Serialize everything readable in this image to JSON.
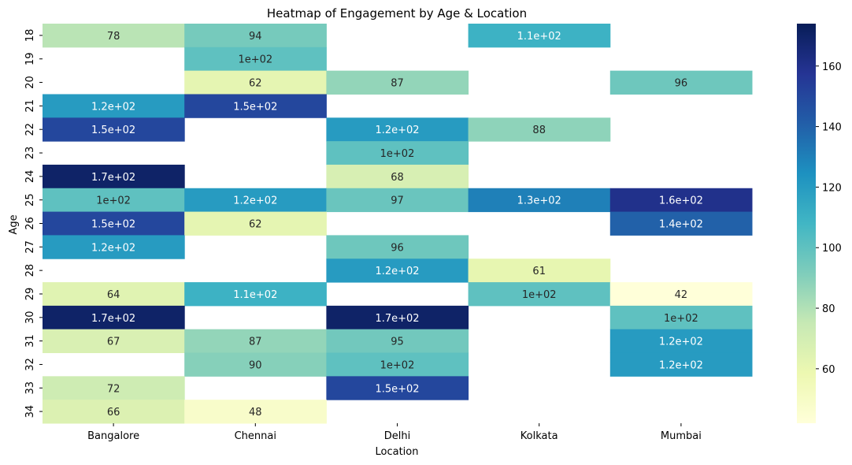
{
  "chart_data": {
    "type": "heatmap",
    "title": "Heatmap of Engagement by Age & Location",
    "xlabel": "Location",
    "ylabel": "Age",
    "x_categories": [
      "Bangalore",
      "Chennai",
      "Delhi",
      "Kolkata",
      "Mumbai"
    ],
    "y_categories": [
      "18",
      "19",
      "20",
      "21",
      "22",
      "23",
      "24",
      "25",
      "26",
      "27",
      "28",
      "29",
      "30",
      "31",
      "32",
      "33",
      "34"
    ],
    "values": [
      [
        78,
        94,
        null,
        110,
        null
      ],
      [
        null,
        100,
        null,
        null,
        null
      ],
      [
        null,
        62,
        87,
        null,
        96
      ],
      [
        120,
        150,
        null,
        null,
        null
      ],
      [
        150,
        null,
        120,
        88,
        null
      ],
      [
        null,
        null,
        100,
        null,
        null
      ],
      [
        170,
        null,
        68,
        null,
        null
      ],
      [
        100,
        120,
        97,
        130,
        160
      ],
      [
        150,
        62,
        null,
        null,
        140
      ],
      [
        120,
        null,
        96,
        null,
        null
      ],
      [
        null,
        null,
        120,
        61,
        null
      ],
      [
        64,
        110,
        null,
        100,
        42
      ],
      [
        170,
        null,
        170,
        null,
        100
      ],
      [
        67,
        87,
        95,
        null,
        120
      ],
      [
        null,
        90,
        100,
        null,
        120
      ],
      [
        72,
        null,
        150,
        null,
        null
      ],
      [
        66,
        48,
        null,
        null,
        null
      ]
    ],
    "annotations": [
      [
        "78",
        "94",
        "",
        "1.1e+02",
        ""
      ],
      [
        "",
        "1e+02",
        "",
        "",
        ""
      ],
      [
        "",
        "62",
        "87",
        "",
        "96"
      ],
      [
        "1.2e+02",
        "1.5e+02",
        "",
        "",
        ""
      ],
      [
        "1.5e+02",
        "",
        "1.2e+02",
        "88",
        ""
      ],
      [
        "",
        "",
        "1e+02",
        "",
        ""
      ],
      [
        "1.7e+02",
        "",
        "68",
        "",
        ""
      ],
      [
        "1e+02",
        "1.2e+02",
        "97",
        "1.3e+02",
        "1.6e+02"
      ],
      [
        "1.5e+02",
        "62",
        "",
        "",
        "1.4e+02"
      ],
      [
        "1.2e+02",
        "",
        "96",
        "",
        ""
      ],
      [
        "",
        "",
        "1.2e+02",
        "61",
        ""
      ],
      [
        "64",
        "1.1e+02",
        "",
        "1e+02",
        "42"
      ],
      [
        "1.7e+02",
        "",
        "1.7e+02",
        "",
        "1e+02"
      ],
      [
        "67",
        "87",
        "95",
        "",
        "1.2e+02"
      ],
      [
        "",
        "90",
        "1e+02",
        "",
        "1.2e+02"
      ],
      [
        "72",
        "",
        "1.5e+02",
        "",
        ""
      ],
      [
        "66",
        "48",
        "",
        "",
        ""
      ]
    ],
    "colorbar": {
      "range": [
        42,
        174
      ],
      "ticks": [
        60,
        80,
        100,
        120,
        140,
        160
      ],
      "tick_labels": [
        "60",
        "80",
        "100",
        "120",
        "140",
        "160"
      ],
      "colormap": "YlGnBu"
    }
  }
}
